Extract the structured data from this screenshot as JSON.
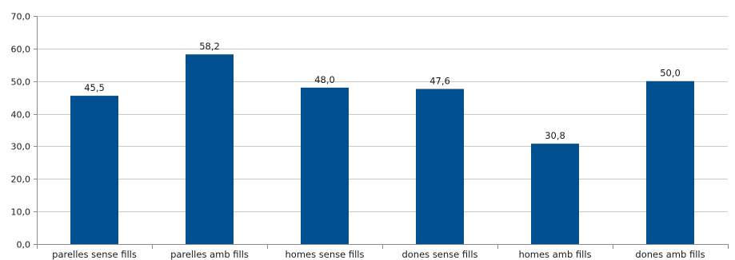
{
  "chart_data": {
    "type": "bar",
    "categories": [
      "parelles sense fills",
      "parelles amb fills",
      "homes sense fills",
      "dones sense fills",
      "homes amb fills",
      "dones amb fills"
    ],
    "values": [
      45.5,
      58.2,
      48.0,
      47.6,
      30.8,
      50.0
    ],
    "value_labels": [
      "45,5",
      "58,2",
      "48,0",
      "47,6",
      "30,8",
      "50,0"
    ],
    "ylim": [
      0,
      70
    ],
    "yticks": [
      0,
      10,
      20,
      30,
      40,
      50,
      60,
      70
    ],
    "ytick_labels": [
      "0,0",
      "10,0",
      "20,0",
      "30,0",
      "40,0",
      "50,0",
      "60,0",
      "70,0"
    ],
    "grid": true,
    "legend": "none",
    "bar_color": "#00508f",
    "grid_color": "#c8c8c8",
    "axis_color": "#8c8c8c"
  }
}
